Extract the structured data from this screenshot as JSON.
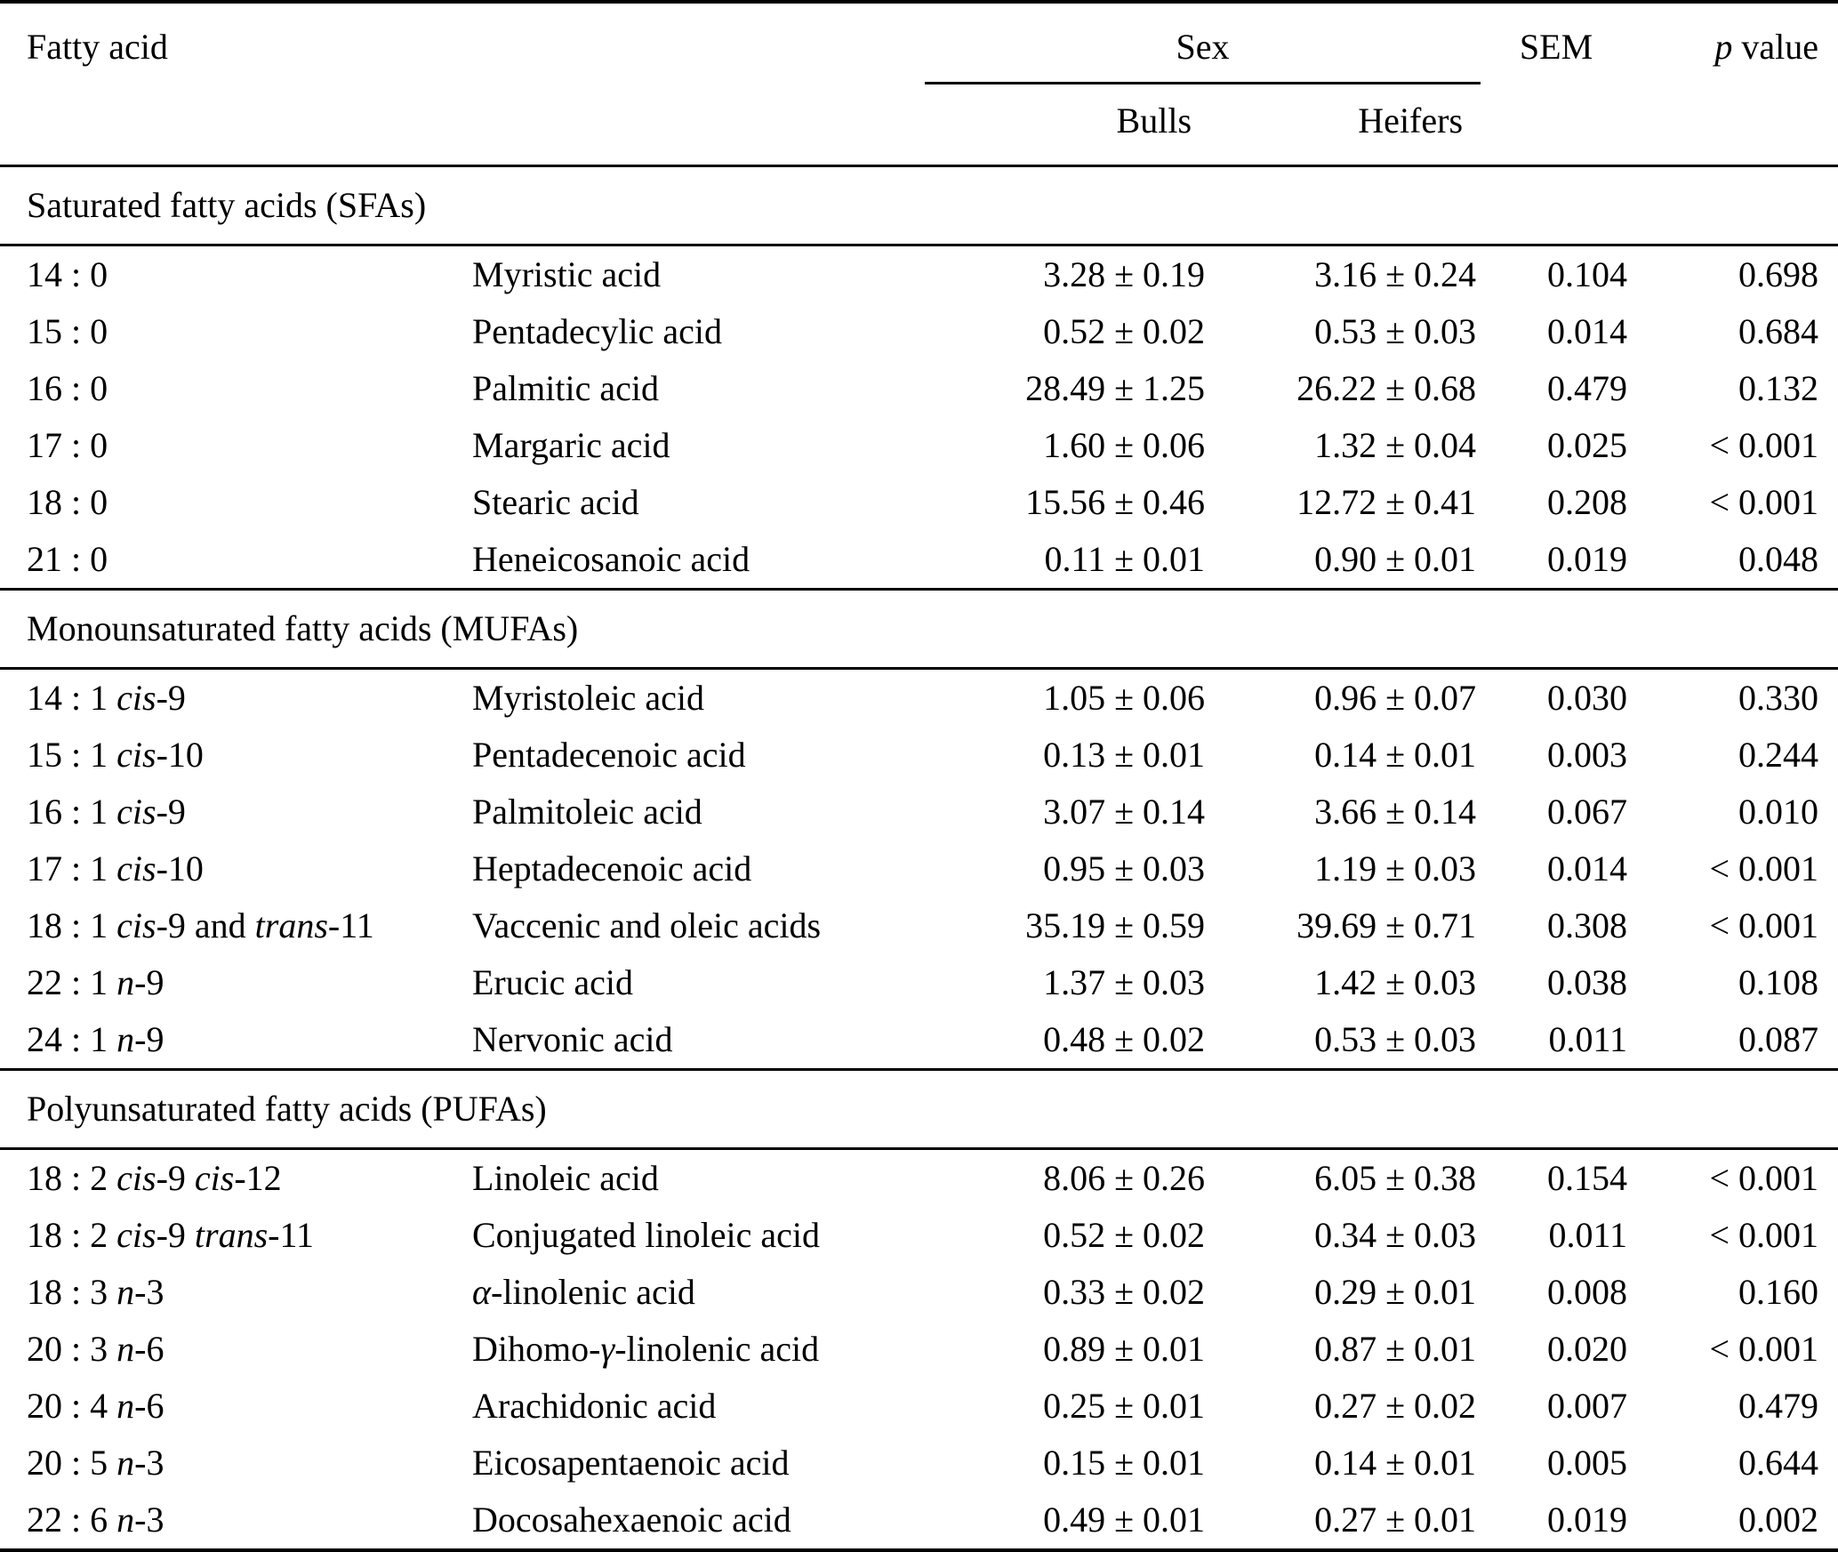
{
  "colors": {
    "text": "#000000",
    "background": "#ffffff",
    "rule": "#000000"
  },
  "table": {
    "header": {
      "fatty_acid": "Fatty acid",
      "sex": "Sex",
      "bulls": "Bulls",
      "heifers": "Heifers",
      "sem": "SEM",
      "p_value_html": "<i>p</i> value"
    },
    "sections": [
      {
        "title": "Saturated fatty acids (SFAs)",
        "rows": [
          {
            "code_html": "14 : 0",
            "name_html": "Myristic acid",
            "bulls": "3.28 ± 0.19",
            "heifers": "3.16 ± 0.24",
            "sem": "0.104",
            "p": "0.698"
          },
          {
            "code_html": "15 : 0",
            "name_html": "Pentadecylic acid",
            "bulls": "0.52 ± 0.02",
            "heifers": "0.53 ± 0.03",
            "sem": "0.014",
            "p": "0.684"
          },
          {
            "code_html": "16 : 0",
            "name_html": "Palmitic acid",
            "bulls": "28.49 ± 1.25",
            "heifers": "26.22 ± 0.68",
            "sem": "0.479",
            "p": "0.132"
          },
          {
            "code_html": "17 : 0",
            "name_html": "Margaric acid",
            "bulls": "1.60 ± 0.06",
            "heifers": "1.32 ± 0.04",
            "sem": "0.025",
            "p": "< 0.001"
          },
          {
            "code_html": "18 : 0",
            "name_html": "Stearic acid",
            "bulls": "15.56 ± 0.46",
            "heifers": "12.72 ± 0.41",
            "sem": "0.208",
            "p": "< 0.001"
          },
          {
            "code_html": "21 : 0",
            "name_html": "Heneicosanoic acid",
            "bulls": "0.11 ± 0.01",
            "heifers": "0.90 ± 0.01",
            "sem": "0.019",
            "p": "0.048"
          }
        ]
      },
      {
        "title": "Monounsaturated fatty acids (MUFAs)",
        "rows": [
          {
            "code_html": "14 : 1 <i>cis</i>-9",
            "name_html": "Myristoleic acid",
            "bulls": "1.05 ± 0.06",
            "heifers": "0.96 ± 0.07",
            "sem": "0.030",
            "p": "0.330"
          },
          {
            "code_html": "15 : 1 <i>cis</i>-10",
            "name_html": "Pentadecenoic acid",
            "bulls": "0.13 ± 0.01",
            "heifers": "0.14 ± 0.01",
            "sem": "0.003",
            "p": "0.244"
          },
          {
            "code_html": "16 : 1 <i>cis</i>-9",
            "name_html": "Palmitoleic acid",
            "bulls": "3.07 ± 0.14",
            "heifers": "3.66 ± 0.14",
            "sem": "0.067",
            "p": "0.010"
          },
          {
            "code_html": "17 : 1 <i>cis</i>-10",
            "name_html": "Heptadecenoic acid",
            "bulls": "0.95 ± 0.03",
            "heifers": "1.19 ± 0.03",
            "sem": "0.014",
            "p": "< 0.001"
          },
          {
            "code_html": "18 : 1 <i>cis</i>-9 and <i>trans</i>-11",
            "name_html": "Vaccenic and oleic acids",
            "bulls": "35.19 ± 0.59",
            "heifers": "39.69 ± 0.71",
            "sem": "0.308",
            "p": "< 0.001"
          },
          {
            "code_html": "22 : 1 <i>n</i>-9",
            "name_html": "Erucic acid",
            "bulls": "1.37 ± 0.03",
            "heifers": "1.42 ± 0.03",
            "sem": "0.038",
            "p": "0.108"
          },
          {
            "code_html": "24 : 1 <i>n</i>-9",
            "name_html": "Nervonic acid",
            "bulls": "0.48 ± 0.02",
            "heifers": "0.53 ± 0.03",
            "sem": "0.011",
            "p": "0.087"
          }
        ]
      },
      {
        "title": "Polyunsaturated fatty acids (PUFAs)",
        "rows": [
          {
            "code_html": "18 : 2 <i>cis</i>-9 <i>cis</i>-12",
            "name_html": "Linoleic acid",
            "bulls": "8.06 ± 0.26",
            "heifers": "6.05 ± 0.38",
            "sem": "0.154",
            "p": "< 0.001"
          },
          {
            "code_html": "18 : 2 <i>cis</i>-9 <i>trans</i>-11",
            "name_html": "Conjugated linoleic acid",
            "bulls": "0.52 ± 0.02",
            "heifers": "0.34 ± 0.03",
            "sem": "0.011",
            "p": "< 0.001"
          },
          {
            "code_html": "18 : 3 <i>n</i>-3",
            "name_html": "<i>α</i>-linolenic acid",
            "bulls": "0.33 ± 0.02",
            "heifers": "0.29 ± 0.01",
            "sem": "0.008",
            "p": "0.160"
          },
          {
            "code_html": "20 : 3 <i>n</i>-6",
            "name_html": "Dihomo-<i>γ</i>-linolenic acid",
            "bulls": "0.89 ± 0.01",
            "heifers": "0.87 ± 0.01",
            "sem": "0.020",
            "p": "< 0.001"
          },
          {
            "code_html": "20 : 4 <i>n</i>-6",
            "name_html": "Arachidonic acid",
            "bulls": "0.25 ± 0.01",
            "heifers": "0.27 ± 0.02",
            "sem": "0.007",
            "p": "0.479"
          },
          {
            "code_html": "20 : 5 <i>n</i>-3",
            "name_html": "Eicosapentaenoic acid",
            "bulls": "0.15 ± 0.01",
            "heifers": "0.14 ± 0.01",
            "sem": "0.005",
            "p": "0.644"
          },
          {
            "code_html": "22 : 6 <i>n</i>-3",
            "name_html": "Docosahexaenoic acid",
            "bulls": "0.49 ± 0.01",
            "heifers": "0.27 ± 0.01",
            "sem": "0.019",
            "p": "0.002"
          }
        ]
      }
    ]
  }
}
